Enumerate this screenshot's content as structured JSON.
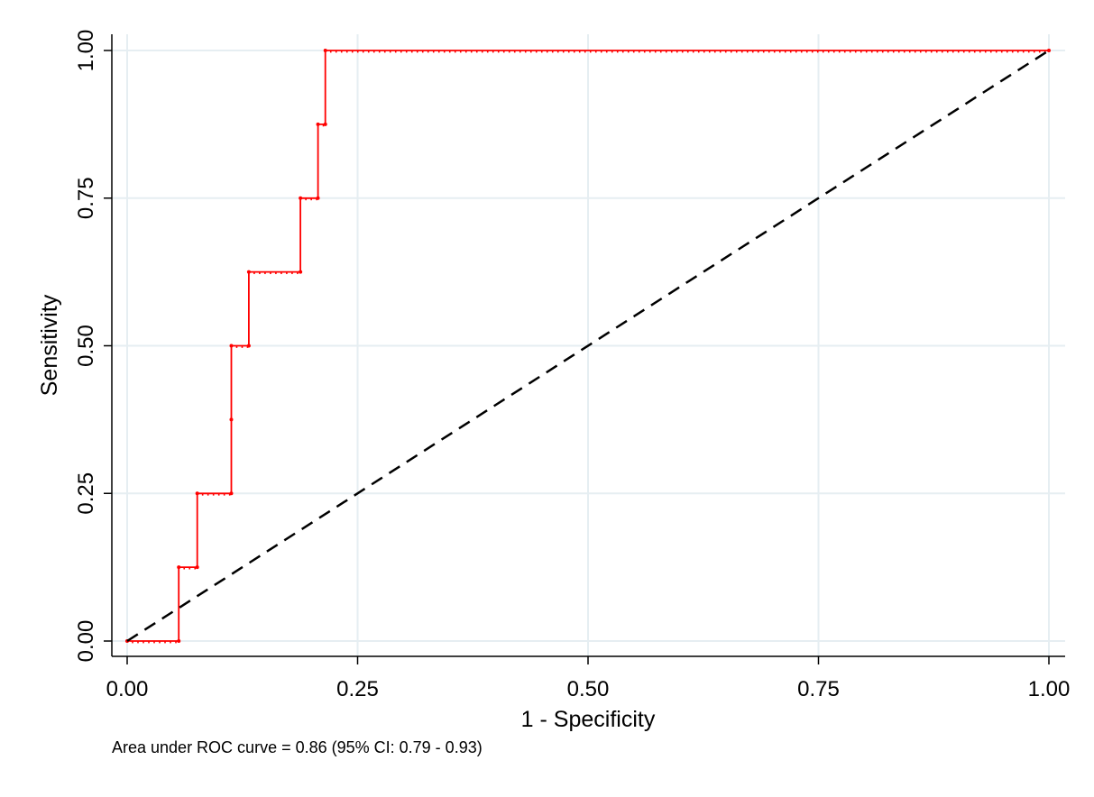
{
  "chart_data": {
    "type": "line",
    "xlabel": "1 - Specificity",
    "ylabel": "Sensitivity",
    "xlim": [
      0,
      1
    ],
    "ylim": [
      0,
      1
    ],
    "xticks": [
      "0.00",
      "0.25",
      "0.50",
      "0.75",
      "1.00"
    ],
    "yticks": [
      "0.00",
      "0.25",
      "0.50",
      "0.75",
      "1.00"
    ],
    "grid": true,
    "note": "Area under ROC curve = 0.86 (95% CI: 0.79 - 0.93)",
    "series": [
      {
        "style": "step",
        "color": "#ff0000",
        "points": [
          [
            0.0,
            0.0
          ],
          [
            0.056,
            0.0
          ],
          [
            0.056,
            0.125
          ],
          [
            0.076,
            0.125
          ],
          [
            0.076,
            0.25
          ],
          [
            0.113,
            0.25
          ],
          [
            0.113,
            0.375
          ],
          [
            0.113,
            0.5
          ],
          [
            0.132,
            0.5
          ],
          [
            0.132,
            0.625
          ],
          [
            0.188,
            0.625
          ],
          [
            0.188,
            0.75
          ],
          [
            0.207,
            0.75
          ],
          [
            0.207,
            0.875
          ],
          [
            0.215,
            0.875
          ],
          [
            0.215,
            1.0
          ],
          [
            1.0,
            1.0
          ]
        ]
      },
      {
        "style": "dashed",
        "color": "#000000",
        "points": [
          [
            0,
            0
          ],
          [
            1,
            1
          ]
        ]
      }
    ]
  }
}
